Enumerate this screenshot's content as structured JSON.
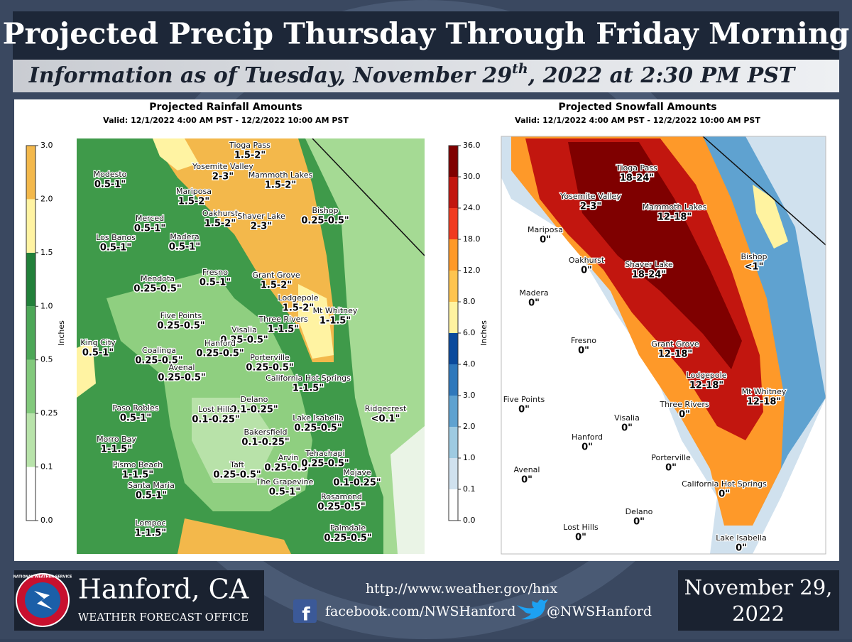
{
  "header": {
    "title": "Projected Precip Thursday Through Friday Morning",
    "subtitle": {
      "before": "Information as of Tuesday, November 29",
      "sup": "th",
      "after": ", 2022 at 2:30 PM PST"
    }
  },
  "rain": {
    "title": "Projected Rainfall Amounts",
    "valid": "Valid: 12/1/2022 4:00 AM PST - 12/2/2022 10:00 AM PST",
    "unit": "Inches",
    "scale": [
      "0.0",
      "0.1",
      "0.25",
      "0.5",
      "1.0",
      "1.5",
      "2.0",
      "3.0"
    ],
    "colors": [
      "#ffffff",
      "#b8e3aa",
      "#82c97c",
      "#4ca757",
      "#22803a",
      "#fff3a2",
      "#f3b84b"
    ],
    "labels": [
      {
        "place": "Tioga Pass",
        "amount": "1.5-2\""
      },
      {
        "place": "Yosemite Valley",
        "amount": "2-3\""
      },
      {
        "place": "Mammoth Lakes",
        "amount": "1.5-2\""
      },
      {
        "place": "Modesto",
        "amount": "0.5-1\""
      },
      {
        "place": "Mariposa",
        "amount": "1.5-2\""
      },
      {
        "place": "Bishop",
        "amount": "0.25-0.5\""
      },
      {
        "place": "Merced",
        "amount": "0.5-1\""
      },
      {
        "place": "Oakhurst",
        "amount": "1.5-2\""
      },
      {
        "place": "Shaver Lake",
        "amount": "2-3\""
      },
      {
        "place": "Los Banos",
        "amount": "0.5-1\""
      },
      {
        "place": "Madera",
        "amount": "0.5-1\""
      },
      {
        "place": "Fresno",
        "amount": "0.5-1\""
      },
      {
        "place": "Mendota",
        "amount": "0.25-0.5\""
      },
      {
        "place": "Grant Grove",
        "amount": "1.5-2\""
      },
      {
        "place": "Lodgepole",
        "amount": "1.5-2\""
      },
      {
        "place": "Mt Whitney",
        "amount": "1-1.5\""
      },
      {
        "place": "Five Points",
        "amount": "0.25-0.5\""
      },
      {
        "place": "Three Rivers",
        "amount": "1-1.5\""
      },
      {
        "place": "Visalia",
        "amount": "0.25-0.5\""
      },
      {
        "place": "Hanford",
        "amount": "0.25-0.5\""
      },
      {
        "place": "King City",
        "amount": "0.5-1\""
      },
      {
        "place": "Coalinga",
        "amount": "0.25-0.5\""
      },
      {
        "place": "Porterville",
        "amount": "0.25-0.5\""
      },
      {
        "place": "Avenal",
        "amount": "0.25-0.5\""
      },
      {
        "place": "California Hot Springs",
        "amount": "1-1.5\""
      },
      {
        "place": "Delano",
        "amount": "0.1-0.25\""
      },
      {
        "place": "Ridgecrest",
        "amount": "<0.1\""
      },
      {
        "place": "Paso Robles",
        "amount": "0.5-1\""
      },
      {
        "place": "Lost Hills",
        "amount": "0.1-0.25\""
      },
      {
        "place": "Lake Isabella",
        "amount": "0.25-0.5\""
      },
      {
        "place": "Morro Bay",
        "amount": "1-1.5\""
      },
      {
        "place": "Bakersfield",
        "amount": "0.1-0.25\""
      },
      {
        "place": "Arvin",
        "amount": "0.25-0.5\""
      },
      {
        "place": "Tehachapi",
        "amount": "0.25-0.5\""
      },
      {
        "place": "Taft",
        "amount": "0.25-0.5\""
      },
      {
        "place": "Pismo Beach",
        "amount": "1-1.5\""
      },
      {
        "place": "Mojave",
        "amount": "0.1-0.25\""
      },
      {
        "place": "Santa Maria",
        "amount": "0.5-1\""
      },
      {
        "place": "The Grapevine",
        "amount": "0.5-1\""
      },
      {
        "place": "Rosamond",
        "amount": "0.25-0.5\""
      },
      {
        "place": "Lompoc",
        "amount": "1-1.5\""
      },
      {
        "place": "Palmdale",
        "amount": "0.25-0.5\""
      }
    ]
  },
  "snow": {
    "title": "Projected Snowfall Amounts",
    "valid": "Valid: 12/1/2022 4:00 AM PST - 12/2/2022 10:00 AM PST",
    "unit": "Inches",
    "scale": [
      "0.0",
      "0.1",
      "1.0",
      "2.0",
      "3.0",
      "4.0",
      "6.0",
      "8.0",
      "12.0",
      "18.0",
      "24.0",
      "30.0",
      "36.0"
    ],
    "colors": [
      "#ffffff",
      "#d0e1ee",
      "#9ecae1",
      "#5fa2d0",
      "#2f78bb",
      "#0a4a9c",
      "#fff3a0",
      "#fec44f",
      "#fe9929",
      "#f03b20",
      "#c2160f",
      "#7f0000"
    ],
    "labels": [
      {
        "place": "Tioga Pass",
        "amount": "18-24\""
      },
      {
        "place": "Yosemite Valley",
        "amount": "2-3\""
      },
      {
        "place": "Mammoth Lakes",
        "amount": "12-18\""
      },
      {
        "place": "Mariposa",
        "amount": "0\""
      },
      {
        "place": "Bishop",
        "amount": "<1\""
      },
      {
        "place": "Oakhurst",
        "amount": "0\""
      },
      {
        "place": "Shaver Lake",
        "amount": "18-24\""
      },
      {
        "place": "Madera",
        "amount": "0\""
      },
      {
        "place": "Fresno",
        "amount": "0\""
      },
      {
        "place": "Grant Grove",
        "amount": "12-18\""
      },
      {
        "place": "Lodgepole",
        "amount": "12-18\""
      },
      {
        "place": "Mt Whitney",
        "amount": "12-18\""
      },
      {
        "place": "Five Points",
        "amount": "0\""
      },
      {
        "place": "Three Rivers",
        "amount": "0\""
      },
      {
        "place": "Visalia",
        "amount": "0\""
      },
      {
        "place": "Hanford",
        "amount": "0\""
      },
      {
        "place": "Porterville",
        "amount": "0\""
      },
      {
        "place": "Avenal",
        "amount": "0\""
      },
      {
        "place": "California Hot Springs",
        "amount": "0\""
      },
      {
        "place": "Delano",
        "amount": "0\""
      },
      {
        "place": "Lost Hills",
        "amount": "0\""
      },
      {
        "place": "Lake Isabella",
        "amount": "0\""
      }
    ]
  },
  "footer": {
    "logo": "NATIONAL WEATHER SERVICE",
    "office": "Hanford, CA",
    "office_type": "WEATHER FORECAST OFFICE",
    "url": "http://www.weather.gov/hnx",
    "facebook": "facebook.com/NWSHanford",
    "twitter": "@NWSHanford",
    "date_line1": "November 29,",
    "date_line2": "2022"
  }
}
